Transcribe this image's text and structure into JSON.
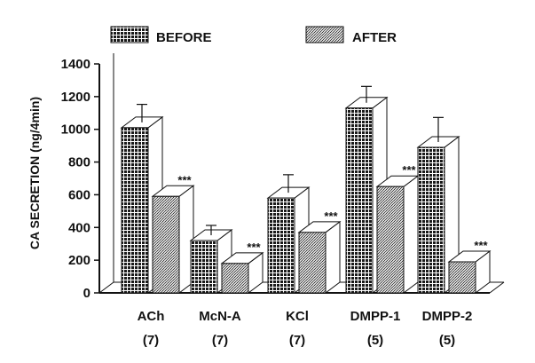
{
  "chart_data": {
    "type": "bar",
    "ylabel": "CA SECRETION (ng/4min)",
    "ylim": [
      0,
      1400
    ],
    "yticks": [
      0,
      200,
      400,
      600,
      800,
      1000,
      1200,
      1400
    ],
    "categories": [
      "ACh",
      "McN-A",
      "KCl",
      "DMPP-1",
      "DMPP-2"
    ],
    "n_labels": [
      "(7)",
      "(7)",
      "(7)",
      "(5)",
      "(5)"
    ],
    "legend_position": "top",
    "series": [
      {
        "name": "BEFORE",
        "values": [
          1010,
          320,
          580,
          1130,
          890
        ],
        "errors": [
          110,
          60,
          110,
          100,
          150
        ],
        "pattern": "crosshatch"
      },
      {
        "name": "AFTER",
        "values": [
          590,
          180,
          370,
          650,
          190
        ],
        "errors": [
          0,
          0,
          0,
          0,
          0
        ],
        "pattern": "stipple"
      }
    ],
    "annotations": [
      "***",
      "***",
      "***",
      "***",
      "***"
    ],
    "colors": {
      "ink": "#111111",
      "before_fill": "#2a2a2a",
      "after_fill": "#8c8c8c"
    }
  }
}
